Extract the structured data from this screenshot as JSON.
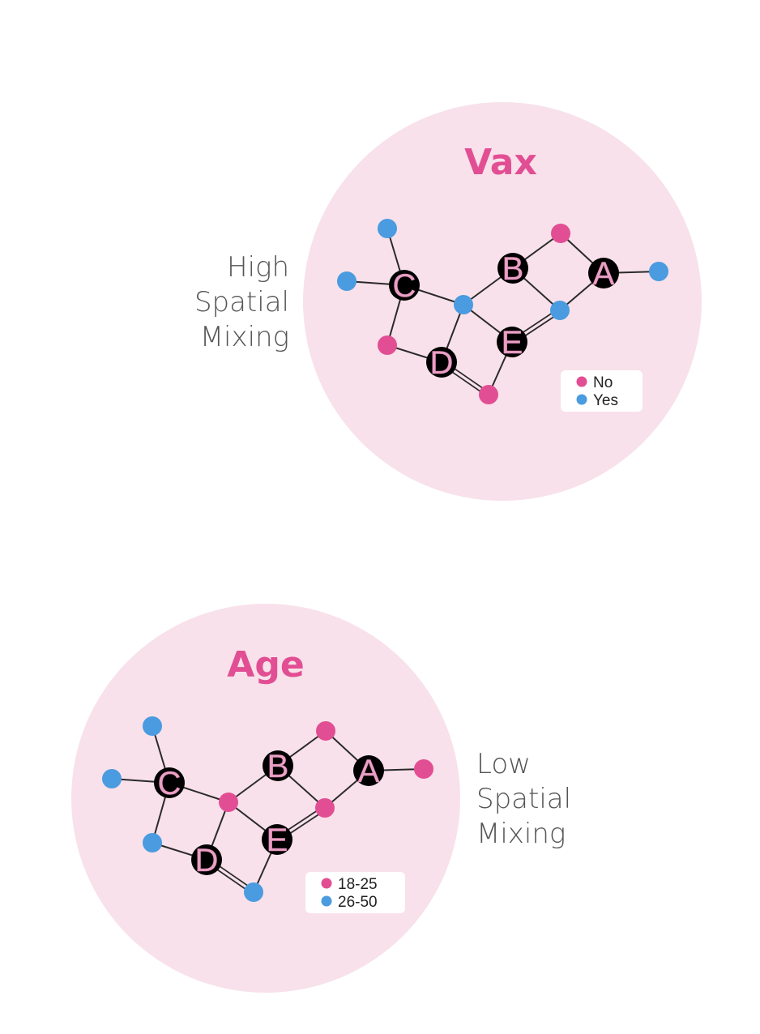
{
  "colors": {
    "pink": "#e24e93",
    "blue": "#4a9be0",
    "circle_bg": "#f8e1ea",
    "hub": "#000000",
    "hub_letter": "#e9a0c4",
    "label": "#555555"
  },
  "panels": [
    {
      "title": "Vax",
      "side_label": [
        "High",
        "Spatial",
        "Mixing"
      ],
      "legend": [
        {
          "label": "No",
          "color": "pink"
        },
        {
          "label": "Yes",
          "color": "blue"
        }
      ],
      "nodes": {
        "A": "hub",
        "B": "hub",
        "C": "hub",
        "D": "hub",
        "E": "hub",
        "c_top": "blue",
        "c_left": "blue",
        "c_below": "pink",
        "center": "blue",
        "b_top": "pink",
        "a_right": "blue",
        "mid_right": "blue",
        "bottom": "pink"
      }
    },
    {
      "title": "Age",
      "side_label": [
        "Low",
        "Spatial",
        "Mixing"
      ],
      "legend": [
        {
          "label": "18-25",
          "color": "pink"
        },
        {
          "label": "26-50",
          "color": "blue"
        }
      ],
      "nodes": {
        "A": "hub",
        "B": "hub",
        "C": "hub",
        "D": "hub",
        "E": "hub",
        "c_top": "blue",
        "c_left": "blue",
        "c_below": "blue",
        "center": "pink",
        "b_top": "pink",
        "a_right": "pink",
        "mid_right": "pink",
        "bottom": "blue"
      }
    }
  ],
  "edges": [
    [
      "c_top",
      "C",
      1
    ],
    [
      "c_left",
      "C",
      1
    ],
    [
      "C",
      "c_below",
      1
    ],
    [
      "C",
      "center",
      1
    ],
    [
      "c_below",
      "D",
      1
    ],
    [
      "center",
      "D",
      1
    ],
    [
      "center",
      "B",
      1
    ],
    [
      "center",
      "E",
      1
    ],
    [
      "D",
      "bottom",
      2
    ],
    [
      "E",
      "bottom",
      1
    ],
    [
      "B",
      "b_top",
      1
    ],
    [
      "b_top",
      "A",
      1
    ],
    [
      "A",
      "a_right",
      1
    ],
    [
      "B",
      "mid_right",
      1
    ],
    [
      "A",
      "mid_right",
      1
    ],
    [
      "E",
      "mid_right",
      2
    ]
  ]
}
